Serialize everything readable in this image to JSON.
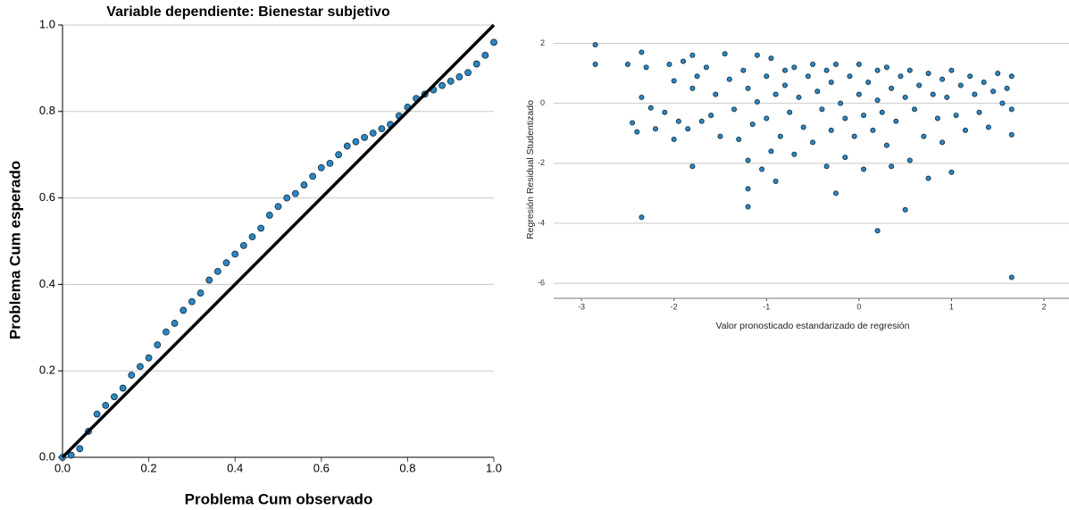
{
  "chart_data": [
    {
      "type": "scatter",
      "title": "Variable dependiente: Bienestar subjetivo",
      "xlabel": "Problema Cum observado",
      "ylabel": "Problema Cum esperado",
      "xlim": [
        0,
        1
      ],
      "ylim": [
        0,
        1
      ],
      "xticks": [
        {
          "value": 0,
          "label": "0.0"
        },
        0.2,
        0.4,
        0.6,
        0.8,
        {
          "value": 1,
          "label": "1.0"
        }
      ],
      "yticks": [
        {
          "value": 0,
          "label": "0.0"
        },
        0.2,
        0.4,
        0.6,
        0.8,
        {
          "value": 1,
          "label": "1.0"
        }
      ],
      "grid": true,
      "color": "#2e86c1",
      "x": [
        0,
        0.02,
        0.04,
        0.06,
        0.08,
        0.1,
        0.12,
        0.14,
        0.16,
        0.18,
        0.2,
        0.22,
        0.24,
        0.26,
        0.28,
        0.3,
        0.32,
        0.34,
        0.36,
        0.38,
        0.4,
        0.42,
        0.44,
        0.46,
        0.48,
        0.5,
        0.52,
        0.54,
        0.56,
        0.58,
        0.6,
        0.62,
        0.64,
        0.66,
        0.68,
        0.7,
        0.72,
        0.74,
        0.76,
        0.78,
        0.8,
        0.82,
        0.84,
        0.86,
        0.88,
        0.9,
        0.92,
        0.94,
        0.96,
        0.98,
        1
      ],
      "values": [
        0,
        0.005,
        0.02,
        0.06,
        0.1,
        0.12,
        0.14,
        0.16,
        0.19,
        0.21,
        0.23,
        0.26,
        0.29,
        0.31,
        0.34,
        0.36,
        0.38,
        0.41,
        0.43,
        0.45,
        0.47,
        0.49,
        0.51,
        0.53,
        0.56,
        0.58,
        0.6,
        0.61,
        0.63,
        0.65,
        0.67,
        0.68,
        0.7,
        0.72,
        0.73,
        0.74,
        0.75,
        0.76,
        0.77,
        0.79,
        0.81,
        0.83,
        0.84,
        0.85,
        0.86,
        0.87,
        0.88,
        0.89,
        0.91,
        0.93,
        0.96
      ]
    },
    {
      "type": "scatter",
      "xlabel": "Valor pronosticado estandarizado de regresión",
      "ylabel": "Regresión Residual Studentizado",
      "xlim": [
        -3.3,
        2.27
      ],
      "ylim": [
        -6.5,
        2.55
      ],
      "xticks": [
        -3,
        -2,
        -1,
        0,
        1,
        2
      ],
      "yticks": [
        -6,
        -4,
        -2,
        0,
        2
      ],
      "grid": true,
      "color": "#2e86c1",
      "x": [
        -2.85,
        -2.85,
        -2.5,
        -2.45,
        -2.4,
        -2.35,
        -2.35,
        -2.35,
        -2.3,
        -2.25,
        -2.2,
        -2.1,
        -2.05,
        -2.0,
        -2.0,
        -1.95,
        -1.9,
        -1.85,
        -1.8,
        -1.8,
        -1.8,
        -1.75,
        -1.7,
        -1.65,
        -1.6,
        -1.55,
        -1.5,
        -1.45,
        -1.4,
        -1.35,
        -1.3,
        -1.25,
        -1.2,
        -1.2,
        -1.2,
        -1.2,
        -1.15,
        -1.1,
        -1.1,
        -1.05,
        -1.0,
        -1.0,
        -0.95,
        -0.95,
        -0.9,
        -0.9,
        -0.85,
        -0.8,
        -0.8,
        -0.75,
        -0.7,
        -0.7,
        -0.65,
        -0.6,
        -0.55,
        -0.5,
        -0.5,
        -0.45,
        -0.4,
        -0.35,
        -0.35,
        -0.3,
        -0.3,
        -0.25,
        -0.25,
        -0.2,
        -0.15,
        -0.15,
        -0.1,
        -0.05,
        0.0,
        0.0,
        0.05,
        0.05,
        0.1,
        0.15,
        0.2,
        0.2,
        0.2,
        0.25,
        0.3,
        0.3,
        0.35,
        0.35,
        0.4,
        0.45,
        0.5,
        0.5,
        0.55,
        0.55,
        0.6,
        0.65,
        0.7,
        0.75,
        0.75,
        0.8,
        0.85,
        0.9,
        0.9,
        0.95,
        1.0,
        1.0,
        1.05,
        1.1,
        1.15,
        1.2,
        1.25,
        1.3,
        1.35,
        1.4,
        1.45,
        1.5,
        1.55,
        1.6,
        1.65,
        1.65,
        1.65,
        1.65
      ],
      "values": [
        1.95,
        1.3,
        1.3,
        -0.65,
        -0.95,
        1.7,
        0.2,
        -3.8,
        1.2,
        -0.15,
        -0.85,
        -0.3,
        1.3,
        0.75,
        -1.2,
        -0.6,
        1.4,
        -0.85,
        1.6,
        0.5,
        -2.1,
        0.9,
        -0.6,
        1.2,
        -0.4,
        0.3,
        -1.1,
        1.65,
        0.8,
        -0.2,
        -1.2,
        1.1,
        0.5,
        -1.9,
        -3.45,
        -2.85,
        -0.7,
        1.6,
        0.05,
        -2.2,
        0.9,
        -0.5,
        1.5,
        -1.6,
        0.3,
        -2.6,
        -1.1,
        1.1,
        0.6,
        -0.3,
        -1.7,
        1.2,
        0.2,
        -0.8,
        0.9,
        1.3,
        -1.3,
        0.4,
        -0.2,
        1.1,
        -2.1,
        0.7,
        -0.9,
        -3.0,
        1.3,
        0.0,
        -0.5,
        -1.8,
        0.9,
        -1.1,
        1.3,
        0.3,
        -0.4,
        -2.2,
        0.7,
        -0.9,
        -4.25,
        1.1,
        0.1,
        -0.3,
        1.2,
        -1.4,
        0.5,
        -2.1,
        -0.6,
        0.9,
        -3.55,
        0.2,
        -1.9,
        1.1,
        -0.2,
        0.6,
        -1.1,
        1.0,
        -2.5,
        0.3,
        -0.5,
        0.8,
        -1.3,
        0.2,
        1.1,
        -2.3,
        -0.4,
        0.6,
        -0.9,
        0.9,
        0.3,
        -0.3,
        0.7,
        -0.8,
        0.4,
        1.0,
        0.0,
        0.5,
        0.9,
        -0.2,
        -1.05,
        -5.8
      ]
    }
  ]
}
